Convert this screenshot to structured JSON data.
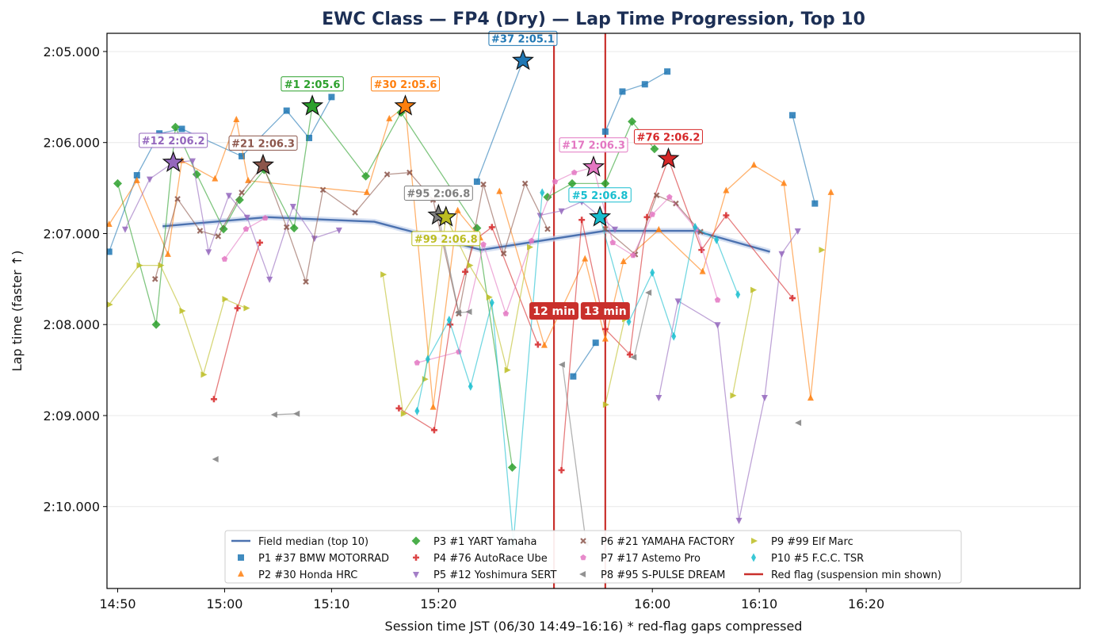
{
  "chart_data": {
    "type": "line",
    "title": "EWC Class — FP4 (Dry) — Lap Time Progression, Top 10",
    "xlabel": "Session time JST (06/30 14:49–16:16)   * red-flag gaps compressed",
    "ylabel": "Lap time (faster ↑)",
    "x_unit": "minutes after 14:50 (compressed axis)",
    "xlim": [
      -1,
      90
    ],
    "ylim": [
      130.9,
      124.8
    ],
    "y_inverted": true,
    "x_ticks": [
      {
        "value": 0,
        "label": "14:50"
      },
      {
        "value": 10,
        "label": "15:00"
      },
      {
        "value": 20,
        "label": "15:10"
      },
      {
        "value": 30,
        "label": "15:20"
      },
      {
        "value": 50,
        "label": "16:00"
      },
      {
        "value": 60,
        "label": "16:10"
      },
      {
        "value": 70,
        "label": "16:20"
      }
    ],
    "y_ticks": [
      {
        "value": 125,
        "label": "2:05.000"
      },
      {
        "value": 126,
        "label": "2:06.000"
      },
      {
        "value": 127,
        "label": "2:07.000"
      },
      {
        "value": 128,
        "label": "2:08.000"
      },
      {
        "value": 129,
        "label": "2:09.000"
      },
      {
        "value": 130,
        "label": "2:10.000"
      }
    ],
    "grid": true,
    "legend_position": "bottom-center",
    "red_flags": [
      {
        "x": 40.8,
        "label": "12 min"
      },
      {
        "x": 45.6,
        "label": "13 min"
      }
    ],
    "median": {
      "name": "Field median (top 10)",
      "color": "#4c72b0",
      "x": [
        4.2,
        14,
        24,
        34,
        45.6,
        54,
        61
      ],
      "y": [
        126.92,
        126.82,
        126.87,
        127.18,
        126.97,
        126.97,
        127.2
      ]
    },
    "series": [
      {
        "name": "P1 #37 BMW MOTORRAD",
        "color": "#1f77b4",
        "marker": "square",
        "x": [
          -0.8,
          1.8,
          3.9,
          6,
          11.6,
          15.8,
          17.9,
          20,
          33.6,
          37.9
        ],
        "y": [
          127.2,
          126.36,
          125.9,
          125.85,
          126.15,
          125.65,
          125.95,
          125.5,
          126.43,
          125.1
        ],
        "breaks": [
          8
        ]
      },
      {
        "name": "P1 #37 BMW MOTORRAD",
        "color": "#1f77b4",
        "marker": "square",
        "legend": false,
        "x": [
          42.6,
          44.7,
          45.6,
          47.2,
          49.3,
          51.4
        ],
        "y": [
          128.57,
          128.2,
          125.88,
          125.44,
          125.36,
          125.22
        ],
        "breaks": [
          2
        ]
      },
      {
        "name": "P1 #37 BMW MOTORRAD",
        "color": "#1f77b4",
        "marker": "square",
        "legend": false,
        "x": [
          63.1,
          65.2
        ],
        "y": [
          125.7,
          126.67
        ],
        "breaks": []
      },
      {
        "name": "P2 #30 Honda HRC",
        "color": "#ff7f0e",
        "marker": "triangle-up",
        "x": [
          -0.8,
          1.8,
          4.7,
          6,
          9.1,
          11.1,
          12.2,
          23.3,
          25.4,
          26.9,
          29.5,
          31.8,
          33.9,
          35.7,
          39.9,
          43.7,
          45.6,
          47.3,
          50.6,
          54.7,
          56.9,
          59.5,
          62.3,
          64.8,
          66.7
        ],
        "y": [
          126.9,
          126.42,
          127.23,
          126.2,
          126.4,
          125.75,
          126.42,
          126.55,
          125.74,
          125.6,
          128.91,
          126.75,
          127.05,
          126.54,
          128.23,
          127.28,
          128.16,
          127.31,
          126.96,
          127.42,
          126.53,
          126.25,
          126.45,
          128.81,
          126.55
        ],
        "breaks": [
          13
        ]
      },
      {
        "name": "P3 #1 YART Yamaha",
        "color": "#2ca02c",
        "marker": "diamond",
        "x": [
          0,
          3.6,
          5.4,
          7.4,
          9.9,
          11.4,
          13.7,
          16.5,
          18.2,
          23.2,
          26.5,
          33.6,
          36.9,
          40.2,
          42.5,
          45.6,
          48.1,
          50.2
        ],
        "y": [
          126.45,
          128.0,
          125.83,
          126.35,
          126.95,
          126.63,
          126.3,
          126.94,
          125.6,
          126.37,
          125.67,
          126.94,
          129.57,
          126.6,
          126.45,
          126.45,
          125.77,
          126.07
        ],
        "breaks": [
          13
        ]
      },
      {
        "name": "P4 #76 AutoRace Ube",
        "color": "#d62728",
        "marker": "plus",
        "x": [
          9,
          11.2,
          13.3,
          26.3,
          29.6,
          31.1,
          32.5,
          33.4,
          35,
          39.3,
          41.5,
          43.4,
          45.6,
          47.9,
          49.5,
          51.5,
          54.6,
          56.9,
          63.1
        ],
        "y": [
          128.82,
          127.82,
          127.1,
          128.92,
          129.16,
          128.0,
          127.42,
          127.07,
          126.93,
          128.22,
          129.6,
          126.85,
          128.05,
          128.33,
          126.82,
          126.18,
          127.18,
          126.8,
          127.71
        ],
        "breaks": [
          3,
          10
        ]
      },
      {
        "name": "P5 #12 Yoshimura SERT",
        "color": "#9467bd",
        "marker": "triangle-down",
        "x": [
          0.7,
          3,
          5.2,
          7,
          8.5,
          10.4,
          12.1,
          14.2,
          16.4,
          18.4,
          20.7,
          39.5,
          41.5,
          43.4,
          46.5,
          50.6,
          52.4,
          56.1,
          58.1,
          60.5,
          62.1,
          63.6
        ],
        "y": [
          126.95,
          126.4,
          126.22,
          126.2,
          127.2,
          126.58,
          126.82,
          127.5,
          126.7,
          127.05,
          126.96,
          126.8,
          126.75,
          126.65,
          126.95,
          128.8,
          127.74,
          128.0,
          130.15,
          128.8,
          127.22,
          126.97
        ],
        "breaks": [
          11,
          15
        ]
      },
      {
        "name": "P6 #21 YAMAHA FACTORY",
        "color": "#8c564b",
        "marker": "x",
        "x": [
          3.5,
          5.6,
          7.7,
          9.4,
          11.6,
          13.6,
          15.8,
          17.6,
          19.2,
          22.2,
          25.2,
          27.3,
          29.5,
          31.9,
          34.2,
          36.1,
          38.1,
          40.2,
          45.6,
          48.4,
          50.4,
          52.2,
          54.5
        ],
        "y": [
          127.5,
          126.62,
          126.97,
          127.03,
          126.55,
          126.25,
          126.93,
          127.53,
          126.52,
          126.77,
          126.35,
          126.33,
          126.63,
          127.88,
          126.46,
          127.22,
          126.45,
          126.95,
          126.95,
          127.23,
          126.58,
          126.67,
          126.98
        ],
        "breaks": [
          18
        ]
      },
      {
        "name": "P7 #17 Astemo Pro",
        "color": "#e377c2",
        "marker": "pentagon",
        "x": [
          10,
          12,
          13.8,
          28,
          31.9,
          34.2,
          36.3,
          38.7,
          40.9,
          42.7,
          44.5,
          46.3,
          48.2,
          50,
          51.6,
          54.1,
          56.1
        ],
        "y": [
          127.28,
          126.95,
          126.83,
          128.42,
          128.3,
          127.12,
          127.88,
          127.08,
          126.43,
          126.33,
          126.27,
          127.1,
          127.24,
          126.79,
          126.6,
          126.95,
          127.73
        ],
        "breaks": [
          3
        ]
      },
      {
        "name": "P8 #95 S-PULSE DREAM",
        "color": "#7f7f7f",
        "marker": "triangle-left",
        "x": [
          9.2,
          14.7,
          16.8,
          30,
          31.9,
          32.9,
          41.6,
          43.8,
          48.3,
          49.7,
          63.7
        ],
        "y": [
          129.48,
          128.99,
          128.98,
          126.8,
          127.87,
          127.86,
          128.44,
          130.4,
          128.36,
          127.65,
          129.08
        ],
        "breaks": [
          1,
          3,
          6,
          8,
          10
        ]
      },
      {
        "name": "P9 #99 Elf Marc",
        "color": "#bcbd22",
        "marker": "triangle-right",
        "x": [
          -0.8,
          2,
          4,
          6,
          8,
          10,
          12,
          24.8,
          26.7,
          28.7,
          30.7,
          32.9,
          34.7,
          36.4,
          38.5,
          45.6,
          47.4,
          57.5,
          59.4,
          65.8
        ],
        "y": [
          127.78,
          127.35,
          127.35,
          127.85,
          128.55,
          127.72,
          127.82,
          127.45,
          128.98,
          128.6,
          126.82,
          127.35,
          127.7,
          128.5,
          127.15,
          128.88,
          127.94,
          128.78,
          127.62,
          127.18
        ],
        "breaks": [
          7,
          15,
          17,
          19
        ]
      },
      {
        "name": "P10 #5 F.C.C. TSR",
        "color": "#17becf",
        "marker": "thin-diamond",
        "x": [
          28,
          29,
          31,
          33,
          35,
          37,
          39.7,
          45.1,
          47.8,
          50,
          52,
          54,
          56,
          58
        ],
        "y": [
          128.95,
          128.38,
          127.95,
          128.68,
          127.76,
          130.4,
          126.55,
          126.82,
          127.97,
          127.43,
          128.13,
          126.93,
          127.07,
          127.67
        ],
        "breaks": [
          7
        ]
      }
    ],
    "annotations": [
      {
        "label": "#37 2:05.1",
        "x": 37.9,
        "y": 125.1,
        "color": "#1f77b4"
      },
      {
        "label": "#1 2:05.6",
        "x": 18.2,
        "y": 125.6,
        "color": "#2ca02c"
      },
      {
        "label": "#30 2:05.6",
        "x": 26.9,
        "y": 125.6,
        "color": "#ff7f0e"
      },
      {
        "label": "#12 2:06.2",
        "x": 5.2,
        "y": 126.22,
        "color": "#9467bd"
      },
      {
        "label": "#21 2:06.3",
        "x": 13.6,
        "y": 126.25,
        "color": "#8c564b"
      },
      {
        "label": "#17 2:06.3",
        "x": 44.5,
        "y": 126.27,
        "color": "#e377c2"
      },
      {
        "label": "#76 2:06.2",
        "x": 51.5,
        "y": 126.18,
        "color": "#d62728"
      },
      {
        "label": "#95 2:06.8",
        "x": 30,
        "y": 126.8,
        "color": "#7f7f7f"
      },
      {
        "label": "#99 2:06.8",
        "x": 30.7,
        "y": 126.82,
        "color": "#bcbd22"
      },
      {
        "label": "#5 2:06.8",
        "x": 45.1,
        "y": 126.82,
        "color": "#17becf"
      }
    ],
    "legend": [
      {
        "name": "Field median (top 10)",
        "color": "#4c72b0",
        "marker": "line"
      },
      {
        "name": "P1 #37 BMW MOTORRAD",
        "color": "#1f77b4",
        "marker": "square"
      },
      {
        "name": "P2 #30 Honda HRC",
        "color": "#ff7f0e",
        "marker": "triangle-up"
      },
      {
        "name": "P3 #1 YART Yamaha",
        "color": "#2ca02c",
        "marker": "diamond"
      },
      {
        "name": "P4 #76 AutoRace Ube",
        "color": "#d62728",
        "marker": "plus"
      },
      {
        "name": "P5 #12 Yoshimura SERT",
        "color": "#9467bd",
        "marker": "triangle-down"
      },
      {
        "name": "P6 #21 YAMAHA FACTORY",
        "color": "#8c564b",
        "marker": "x"
      },
      {
        "name": "P7 #17 Astemo Pro",
        "color": "#e377c2",
        "marker": "pentagon"
      },
      {
        "name": "P8 #95 S-PULSE DREAM",
        "color": "#7f7f7f",
        "marker": "triangle-left"
      },
      {
        "name": "P9 #99 Elf Marc",
        "color": "#bcbd22",
        "marker": "triangle-right"
      },
      {
        "name": "P10 #5 F.C.C. TSR",
        "color": "#17becf",
        "marker": "thin-diamond"
      },
      {
        "name": "Red flag (suspension min shown)",
        "color": "#c9302c",
        "marker": "line"
      }
    ]
  }
}
